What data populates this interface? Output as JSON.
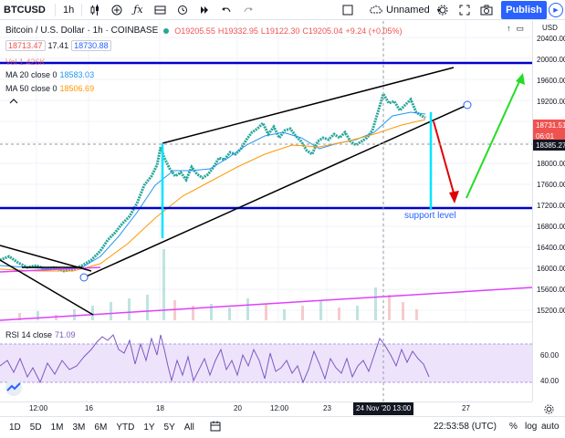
{
  "toolbar": {
    "symbol": "BTCUSD",
    "interval": "1h",
    "layout_name": "Unnamed",
    "publish_label": "Publish",
    "icons": [
      "plus-circle-icon",
      "indicators-icon",
      "compare-icon",
      "alert-icon",
      "replay-icon",
      "undo-icon",
      "redo-icon",
      "fullscreen-icon",
      "cloud-icon",
      "settings-icon",
      "fullscreen-expand-icon",
      "camera-icon",
      "play-icon"
    ]
  },
  "legend": {
    "title": "Bitcoin / U.S. Dollar · 1h · COINBASE",
    "o": "O19205.55",
    "h": "H19332.95",
    "l": "L19122.30",
    "c": "C19205.04",
    "chg": "+9.24 (+0.05%)",
    "bid": "18713.47",
    "spread": "17.41",
    "ask": "18730.88",
    "vol": "Vol  1.426K",
    "ma20_label": "MA 20 close 0",
    "ma20_value": "18583.03",
    "ma50_label": "MA 50 close 0",
    "ma50_value": "18506.69",
    "rsi_label": "RSI 14 close",
    "rsi_value": "71.09"
  },
  "price_axis": {
    "currency": "USD",
    "labels": [
      "20400.00",
      "20000.00",
      "19600.00",
      "19200.00",
      "18800.00",
      "18400.00",
      "18000.00",
      "17600.00",
      "17200.00",
      "16800.00",
      "16400.00",
      "16000.00",
      "15600.00",
      "15200.00"
    ],
    "last_price": "18731.51",
    "countdown": "06:01",
    "crosshair_price": "18385.27",
    "rsi_labels": [
      "60.00",
      "40.00"
    ]
  },
  "time_axis": {
    "labels": [
      "12:00",
      "16",
      "18",
      "20",
      "12:00",
      "23",
      "27"
    ],
    "cursor": "24 Nov '20   13:00"
  },
  "annotation": "support level",
  "bottom": {
    "ranges": [
      "1D",
      "5D",
      "1M",
      "3M",
      "6M",
      "YTD",
      "1Y",
      "5Y",
      "All"
    ],
    "clock": "22:53:58 (UTC)",
    "percent": "%",
    "log": "log",
    "auto": "auto"
  },
  "colors": {
    "accent": "#2962ff",
    "up": "#26a69a",
    "down": "#ef5350",
    "ma20": "#2196f3",
    "ma50": "#ff9800",
    "rsi": "#7e57c2",
    "support": "#0000cc",
    "trendline": "#e040fb"
  },
  "chart_data": {
    "type": "candlestick",
    "symbol": "BTCUSD",
    "interval": "1h",
    "ylim": [
      15000,
      20500
    ],
    "horizontal_levels": [
      19960,
      17150
    ],
    "last_price": 18731.51,
    "ma20": 18583.03,
    "ma50": 18506.69,
    "rsi": 71.09,
    "rsi_ylim": [
      20,
      80
    ]
  }
}
